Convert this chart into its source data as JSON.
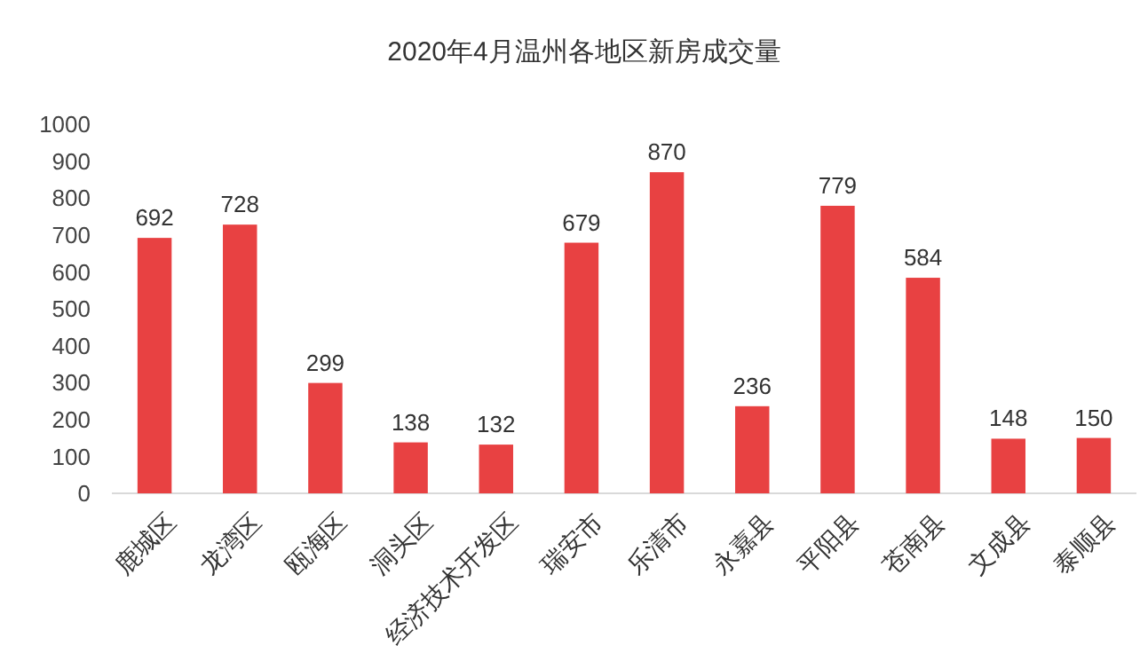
{
  "chart_data": {
    "type": "bar",
    "title": "2020年4月温州各地区新房成交量",
    "categories": [
      "鹿城区",
      "龙湾区",
      "瓯海区",
      "洞头区",
      "经济技术开发区",
      "瑞安市",
      "乐清市",
      "永嘉县",
      "平阳县",
      "苍南县",
      "文成县",
      "泰顺县"
    ],
    "values": [
      692,
      728,
      299,
      138,
      132,
      679,
      870,
      236,
      779,
      584,
      148,
      150
    ],
    "color": "#e84142",
    "ylim": [
      0,
      1000
    ],
    "yticks": [
      0,
      100,
      200,
      300,
      400,
      500,
      600,
      700,
      800,
      900,
      1000
    ],
    "grid": false,
    "data_labels": true
  }
}
